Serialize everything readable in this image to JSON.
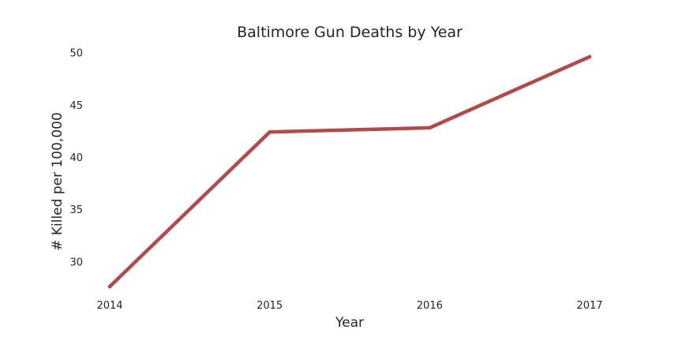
{
  "chart_data": {
    "type": "line",
    "title": "Baltimore Gun Deaths by Year",
    "xlabel": "Year",
    "ylabel": "# Killed per 100,000",
    "x": [
      "2014",
      "2015",
      "2016",
      "2017"
    ],
    "series": [
      {
        "values": [
          27.6,
          42.4,
          42.8,
          49.6
        ],
        "color": "#b04a4b"
      }
    ],
    "yticks": [
      "30",
      "35",
      "40",
      "45",
      "50"
    ],
    "ylim": [
      27,
      50.5
    ],
    "grid": false,
    "legend": "none"
  }
}
